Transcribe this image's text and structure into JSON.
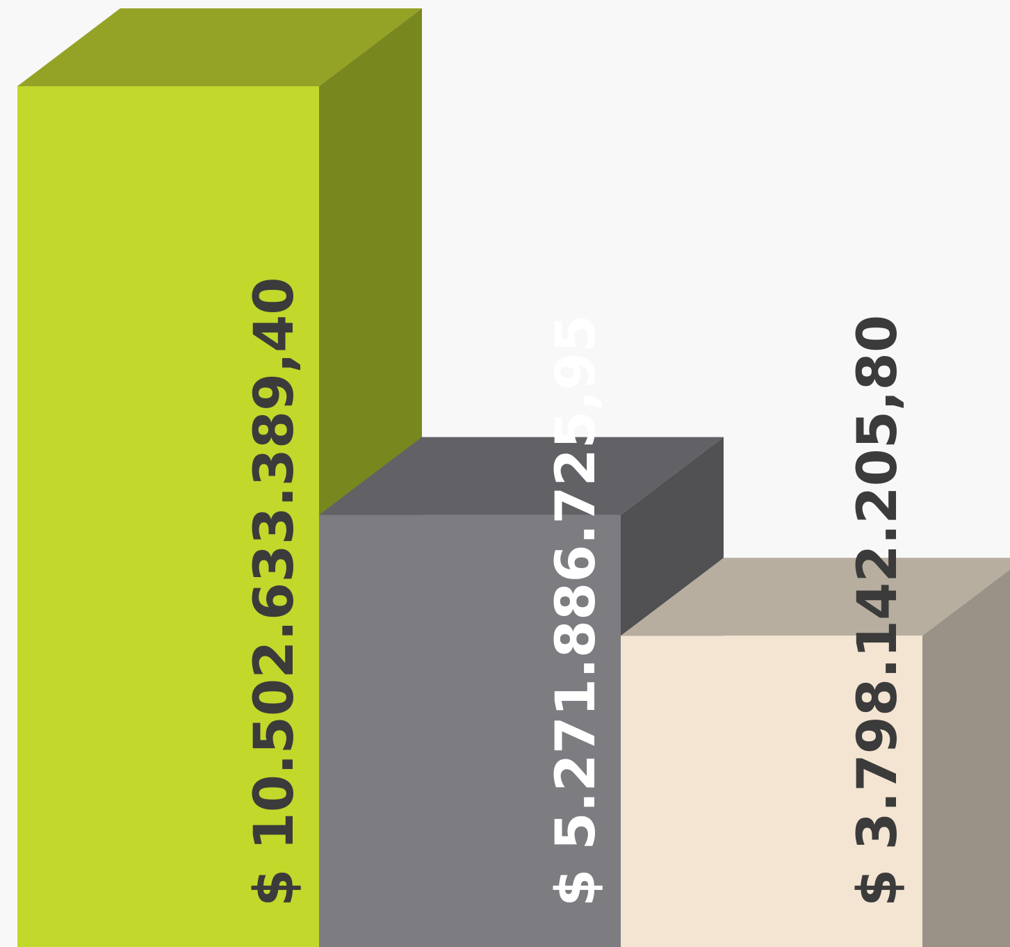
{
  "chart_data": {
    "type": "bar",
    "style": "3d",
    "title": "",
    "xlabel": "",
    "ylabel": "",
    "grid": false,
    "legend": "none",
    "value_max": 10502633389.4,
    "bars": [
      {
        "value": 10502633389.4,
        "label": "$ 10.502.633.389,40",
        "front_color": "#c2d82b",
        "top_color": "#94a326",
        "side_color": "#79871f",
        "label_color": "#3b3b3b"
      },
      {
        "value": 5271886725.95,
        "label": "$ 5.271.886.725,95",
        "front_color": "#7c7c81",
        "top_color": "#616166",
        "side_color": "#515153",
        "label_color": "#ffffff"
      },
      {
        "value": 3798142205.8,
        "label": "$ 3.798.142.205,80",
        "front_color": "#f3e5d2",
        "top_color": "#b7ae9f",
        "side_color": "#9a9187",
        "label_color": "#3b3b3b"
      }
    ]
  }
}
